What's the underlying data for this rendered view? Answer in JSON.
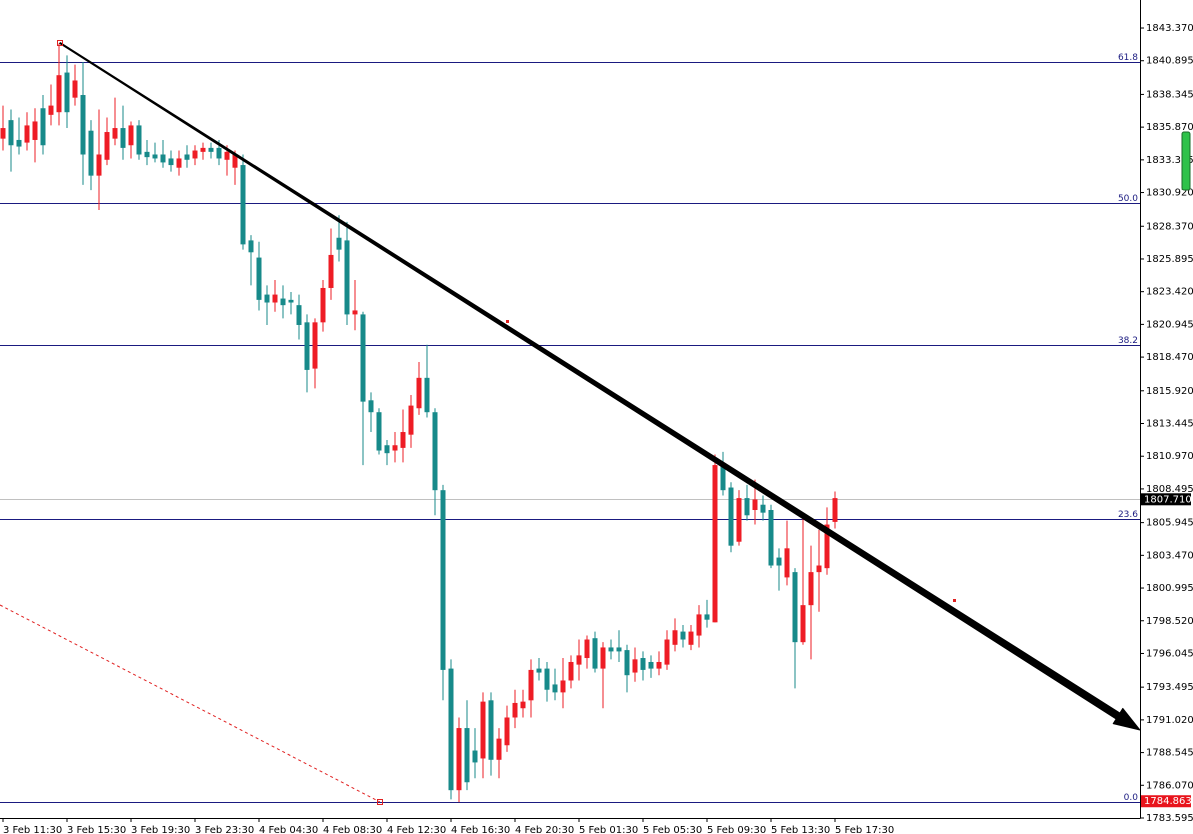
{
  "chart_data": {
    "type": "candlestick",
    "categories": [
      "3 Feb 11:30",
      null,
      null,
      null,
      null,
      null,
      null,
      null,
      "3 Feb 15:30",
      null,
      null,
      null,
      null,
      null,
      null,
      null,
      "3 Feb 19:30",
      null,
      null,
      null,
      null,
      null,
      null,
      null,
      "3 Feb 23:30",
      null,
      null,
      null,
      null,
      null,
      null,
      null,
      "4 Feb 04:30",
      null,
      null,
      null,
      null,
      null,
      null,
      null,
      "4 Feb 08:30",
      null,
      null,
      null,
      null,
      null,
      null,
      null,
      "4 Feb 12:30",
      null,
      null,
      null,
      null,
      null,
      null,
      null,
      "4 Feb 16:30",
      null,
      null,
      null,
      null,
      null,
      null,
      null,
      "4 Feb 20:30",
      null,
      null,
      null,
      null,
      null,
      null,
      null,
      "5 Feb 01:30",
      null,
      null,
      null,
      null,
      null,
      null,
      null,
      "5 Feb 05:30",
      null,
      null,
      null,
      null,
      null,
      null,
      null,
      "5 Feb 09:30",
      null,
      null,
      null,
      null,
      null,
      null,
      null,
      "5 Feb 13:30",
      null,
      null,
      null,
      null,
      null,
      null,
      null,
      "5 Feb 17:30"
    ],
    "open": [
      1835.0,
      1836.4,
      1834.9,
      1834.7,
      1834.9,
      1837.3,
      1836.8,
      1837.0,
      1840.0,
      1838.1,
      1838.3,
      1835.6,
      1832.2,
      1833.4,
      1835.0,
      1835.8,
      1834.5,
      1836.0,
      1834.0,
      1833.8,
      1833.8,
      1833.5,
      1832.8,
      1833.8,
      1833.5,
      1834.0,
      1834.3,
      1834.3,
      1833.4,
      1832.8,
      1833.0,
      1827.3,
      1826.0,
      1823.2,
      1822.6,
      1822.9,
      1822.8,
      1822.4,
      1821.1,
      1817.6,
      1821.1,
      1823.7,
      1827.5,
      1827.3,
      1821.7,
      1821.7,
      1815.2,
      1814.3,
      1811.8,
      1811.4,
      1811.6,
      1812.6,
      1814.6,
      1816.9,
      1814.3,
      1808.4,
      1794.9,
      1785.7,
      1790.4,
      1788.7,
      1788.1,
      1792.5,
      1788.0,
      1789.1,
      1791.2,
      1791.9,
      1792.5,
      1794.9,
      1794.9,
      1793.7,
      1793.1,
      1794.0,
      1795.2,
      1795.7,
      1797.2,
      1794.9,
      1796.5,
      1796.5,
      1796.3,
      1794.6,
      1795.7,
      1795.4,
      1794.9,
      1795.2,
      1796.7,
      1797.7,
      1796.7,
      1797.4,
      1799.0,
      1798.4,
      1810.3,
      1808.6,
      1804.5,
      1807.8,
      1806.9,
      1807.3,
      1806.9,
      1803.3,
      1801.8,
      1802.2,
      1796.9,
      1799.7,
      1802.2,
      1802.5,
      1806.0
    ],
    "high": [
      1837.5,
      1837.2,
      1836.6,
      1837.0,
      1837.3,
      1838.3,
      1839.1,
      1842.2,
      1841.3,
      1840.6,
      1840.8,
      1836.4,
      1837.2,
      1836.6,
      1838.1,
      1837.5,
      1836.3,
      1836.4,
      1834.9,
      1834.7,
      1834.9,
      1834.1,
      1834.1,
      1834.5,
      1834.5,
      1834.7,
      1834.7,
      1834.9,
      1834.5,
      1834.1,
      1833.8,
      1827.7,
      1827.2,
      1823.9,
      1824.3,
      1823.9,
      1823.4,
      1823.2,
      1821.7,
      1821.4,
      1824.3,
      1828.2,
      1829.2,
      1828.7,
      1824.3,
      1821.9,
      1815.8,
      1814.6,
      1812.2,
      1812.8,
      1814.5,
      1815.6,
      1818.1,
      1819.4,
      1814.6,
      1808.8,
      1795.6,
      1791.2,
      1792.5,
      1790.4,
      1793.1,
      1793.1,
      1790.4,
      1792.1,
      1793.3,
      1793.3,
      1795.6,
      1795.7,
      1795.4,
      1794.9,
      1795.7,
      1795.9,
      1797.1,
      1797.4,
      1797.7,
      1796.9,
      1797.1,
      1797.8,
      1796.7,
      1796.5,
      1796.2,
      1795.9,
      1796.2,
      1797.8,
      1798.7,
      1798.2,
      1798.2,
      1799.7,
      1800.1,
      1811.1,
      1811.3,
      1809.0,
      1808.4,
      1808.8,
      1809.2,
      1808.0,
      1807.3,
      1804.0,
      1806.1,
      1802.5,
      1806.5,
      1804.2,
      1805.4,
      1807.1,
      1808.3
    ],
    "low": [
      1834.1,
      1832.5,
      1833.8,
      1834.1,
      1833.2,
      1833.8,
      1836.0,
      1836.0,
      1835.8,
      1837.5,
      1831.5,
      1831.1,
      1829.6,
      1833.0,
      1834.5,
      1833.4,
      1833.5,
      1833.4,
      1833.0,
      1833.2,
      1832.8,
      1832.5,
      1832.2,
      1832.8,
      1833.0,
      1833.4,
      1833.5,
      1833.0,
      1832.2,
      1831.5,
      1826.6,
      1823.9,
      1822.0,
      1820.9,
      1821.9,
      1821.4,
      1821.7,
      1819.8,
      1815.8,
      1816.1,
      1820.4,
      1822.8,
      1825.7,
      1820.9,
      1820.5,
      1810.3,
      1812.8,
      1811.1,
      1810.3,
      1810.5,
      1810.5,
      1811.6,
      1814.1,
      1813.9,
      1806.5,
      1792.5,
      1785.0,
      1784.8,
      1785.7,
      1786.6,
      1786.6,
      1786.8,
      1786.6,
      1788.6,
      1790.4,
      1791.2,
      1791.2,
      1794.0,
      1792.4,
      1792.5,
      1791.9,
      1793.4,
      1794.0,
      1794.9,
      1794.6,
      1791.9,
      1795.6,
      1795.4,
      1793.1,
      1793.9,
      1794.0,
      1794.2,
      1794.4,
      1794.8,
      1796.2,
      1796.5,
      1796.3,
      1796.5,
      1798.0,
      1798.4,
      1808.0,
      1803.7,
      1804.2,
      1806.1,
      1805.8,
      1806.1,
      1802.5,
      1800.8,
      1801.2,
      1793.4,
      1796.7,
      1795.6,
      1799.2,
      1802.0,
      1805.5
    ],
    "close": [
      1835.8,
      1834.5,
      1834.4,
      1836.0,
      1836.3,
      1834.5,
      1837.5,
      1839.8,
      1837.0,
      1839.4,
      1833.8,
      1832.2,
      1833.8,
      1835.5,
      1835.8,
      1834.3,
      1836.0,
      1833.8,
      1833.6,
      1833.5,
      1833.2,
      1833.0,
      1833.5,
      1833.4,
      1834.1,
      1834.3,
      1834.0,
      1833.5,
      1834.0,
      1833.8,
      1827.0,
      1826.4,
      1822.8,
      1822.6,
      1823.2,
      1822.4,
      1822.6,
      1820.9,
      1817.5,
      1821.1,
      1823.7,
      1826.2,
      1826.6,
      1821.7,
      1822.0,
      1815.1,
      1814.3,
      1811.4,
      1811.2,
      1811.8,
      1812.8,
      1814.8,
      1816.9,
      1814.3,
      1808.4,
      1794.8,
      1785.7,
      1790.4,
      1786.3,
      1787.8,
      1792.4,
      1788.0,
      1789.6,
      1791.2,
      1792.3,
      1792.4,
      1794.8,
      1794.6,
      1793.3,
      1793.1,
      1794.0,
      1795.4,
      1795.9,
      1797.1,
      1794.9,
      1796.5,
      1796.2,
      1796.2,
      1794.4,
      1795.6,
      1794.8,
      1794.9,
      1795.4,
      1797.1,
      1797.8,
      1797.1,
      1797.7,
      1799.0,
      1798.6,
      1810.3,
      1808.4,
      1804.2,
      1807.8,
      1806.5,
      1807.7,
      1806.7,
      1802.7,
      1802.7,
      1804.0,
      1796.9,
      1799.7,
      1802.2,
      1802.7,
      1805.8,
      1807.8
    ],
    "up_color": "#ee1c25",
    "down_color": "#178a8a",
    "ylim": [
      1783.595,
      1845.49
    ],
    "yticks": [
      {
        "value": 1843.37,
        "label": "1843.370"
      },
      1840.895,
      1838.345,
      {
        "value": 1835.87,
        "label": "1835.870"
      },
      1833.395,
      {
        "value": 1830.92,
        "label": "1830.920"
      },
      {
        "value": 1828.37,
        "label": "1828.370"
      },
      1825.895,
      {
        "value": 1823.42,
        "label": "1823.420"
      },
      1820.945,
      {
        "value": 1818.47,
        "label": "1818.470"
      },
      {
        "value": 1815.92,
        "label": "1815.920"
      },
      1813.445,
      {
        "value": 1810.97,
        "label": "1810.970"
      },
      1808.495,
      1805.945,
      {
        "value": 1803.47,
        "label": "1803.470"
      },
      1800.995,
      {
        "value": 1798.52,
        "label": "1798.520"
      },
      1796.045,
      1793.495,
      {
        "value": 1791.02,
        "label": "1791.020"
      },
      1788.545,
      {
        "value": 1786.07,
        "label": "1786.070"
      },
      1783.595
    ],
    "levels": [
      {
        "label": "61.8",
        "value": 1840.8
      },
      {
        "label": "50.0",
        "value": 1830.13
      },
      {
        "label": "38.2",
        "value": 1819.38
      },
      {
        "label": "23.6",
        "value": 1806.22
      },
      {
        "label": "0.0",
        "value": 1784.8
      }
    ],
    "level_color": "#1a1a80",
    "current_price": {
      "value": 1807.71,
      "label": "1807.710"
    },
    "low_marker": {
      "value": 1784.863,
      "label": "1784.863"
    }
  }
}
